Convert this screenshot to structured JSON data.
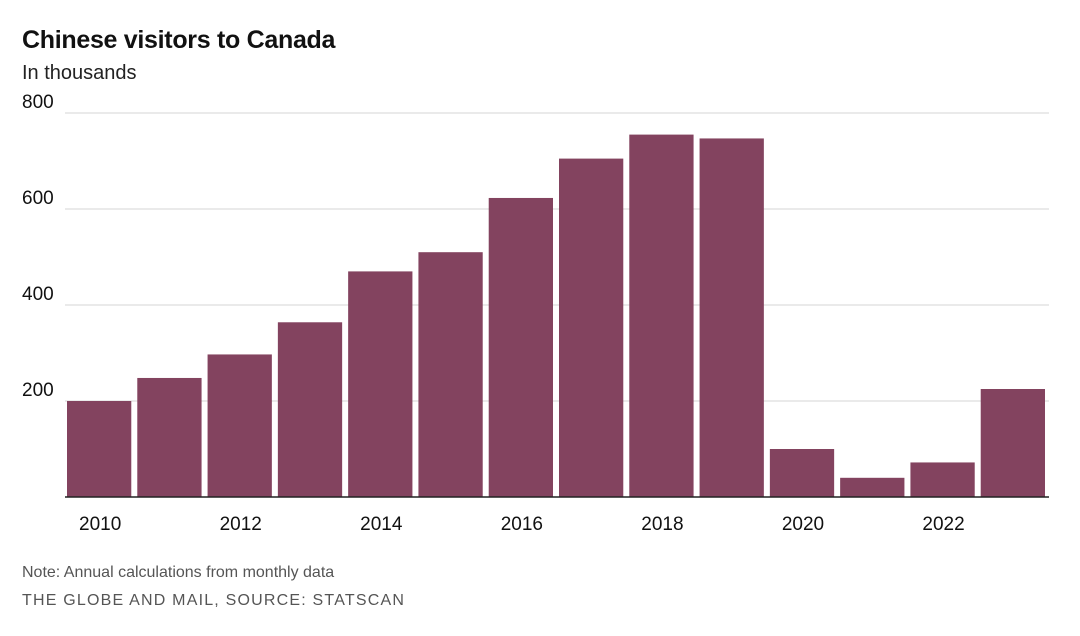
{
  "chart_data": {
    "type": "bar",
    "title": "Chinese visitors to Canada",
    "subtitle": "In thousands",
    "categories": [
      "2010",
      "2011",
      "2012",
      "2013",
      "2014",
      "2015",
      "2016",
      "2017",
      "2018",
      "2019",
      "2020",
      "2021",
      "2022",
      "2023"
    ],
    "values": [
      200,
      248,
      297,
      364,
      470,
      510,
      623,
      705,
      755,
      747,
      100,
      40,
      72,
      225
    ],
    "x_tick_labels": [
      "2010",
      "2012",
      "2014",
      "2016",
      "2018",
      "2020",
      "2022"
    ],
    "y_ticks": [
      200,
      400,
      600,
      800
    ],
    "ylim": [
      0,
      800
    ],
    "xlabel": "",
    "ylabel": "",
    "grid": true,
    "bar_color": "#83435F",
    "note": "Note: Annual calculations from monthly data",
    "source": "THE GLOBE AND MAIL, SOURCE: STATSCAN"
  }
}
